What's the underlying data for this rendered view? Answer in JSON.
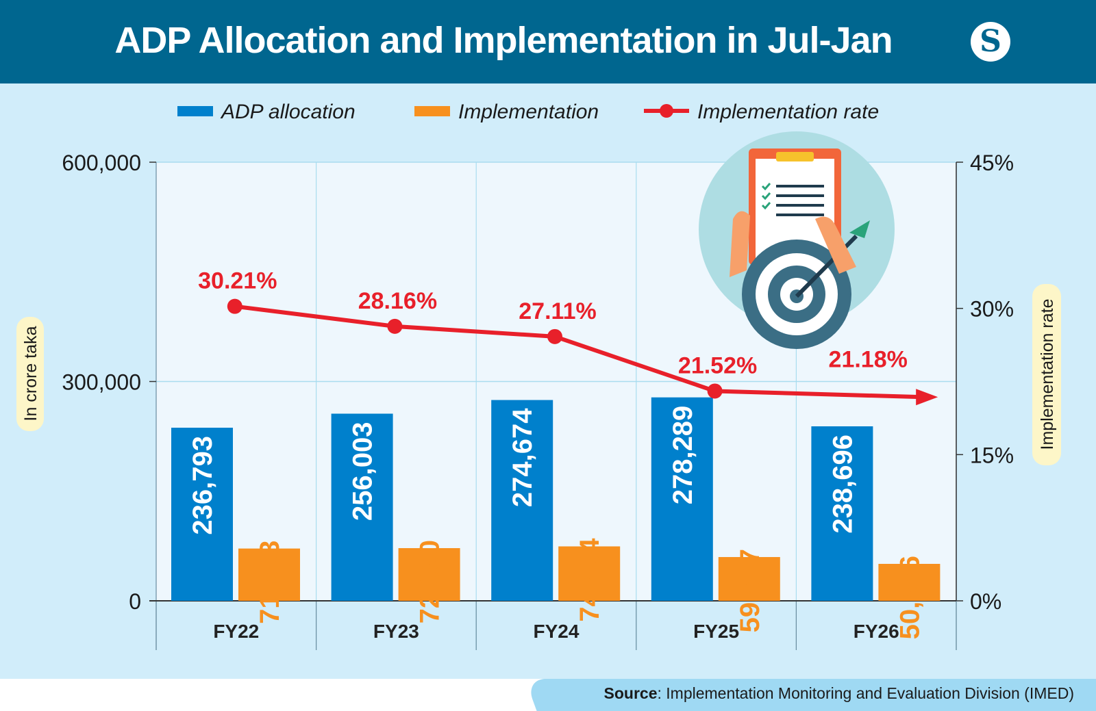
{
  "header": {
    "title": "ADP Allocation and Implementation in Jul-Jan",
    "logo_text": "S"
  },
  "source": {
    "label": "Source",
    "text": ": Implementation Monitoring and Evaluation Division (IMED)"
  },
  "chart_data": {
    "type": "bar",
    "title": "ADP Allocation and Implementation in Jul-Jan",
    "categories": [
      "FY22",
      "FY23",
      "FY24",
      "FY25",
      "FY26"
    ],
    "series": [
      {
        "name": "ADP allocation",
        "type": "bar",
        "axis": "left",
        "color": "#0080cc",
        "values": [
          236793,
          256003,
          274674,
          278289,
          238696
        ],
        "labels": [
          "236,793",
          "256,003",
          "274,674",
          "278,289",
          "238,696"
        ]
      },
      {
        "name": "Implementation",
        "type": "bar",
        "axis": "left",
        "color": "#f7901e",
        "values": [
          71533,
          72090,
          74464,
          59877,
          50556
        ],
        "labels": [
          "71,533",
          "72,090",
          "74,464",
          "59,877",
          "50,556"
        ]
      },
      {
        "name": "Implementation rate",
        "type": "line",
        "axis": "right",
        "color": "#e8202a",
        "values": [
          30.21,
          28.16,
          27.11,
          21.52,
          21.18
        ],
        "labels": [
          "30.21%",
          "28.16%",
          "27.11%",
          "21.52%",
          "21.18%"
        ]
      }
    ],
    "ylabel": "In crore taka",
    "y2label": "Implementation rate",
    "ylim": [
      0,
      600000
    ],
    "y2lim": [
      0,
      45
    ],
    "yticks": [
      "0",
      "300,000",
      "600,000"
    ],
    "yticks_values": [
      0,
      300000,
      600000
    ],
    "y2ticks": [
      "0%",
      "15%",
      "30%",
      "45%"
    ],
    "y2ticks_values": [
      0,
      15,
      30,
      45
    ],
    "grid": true,
    "legend": "top"
  }
}
